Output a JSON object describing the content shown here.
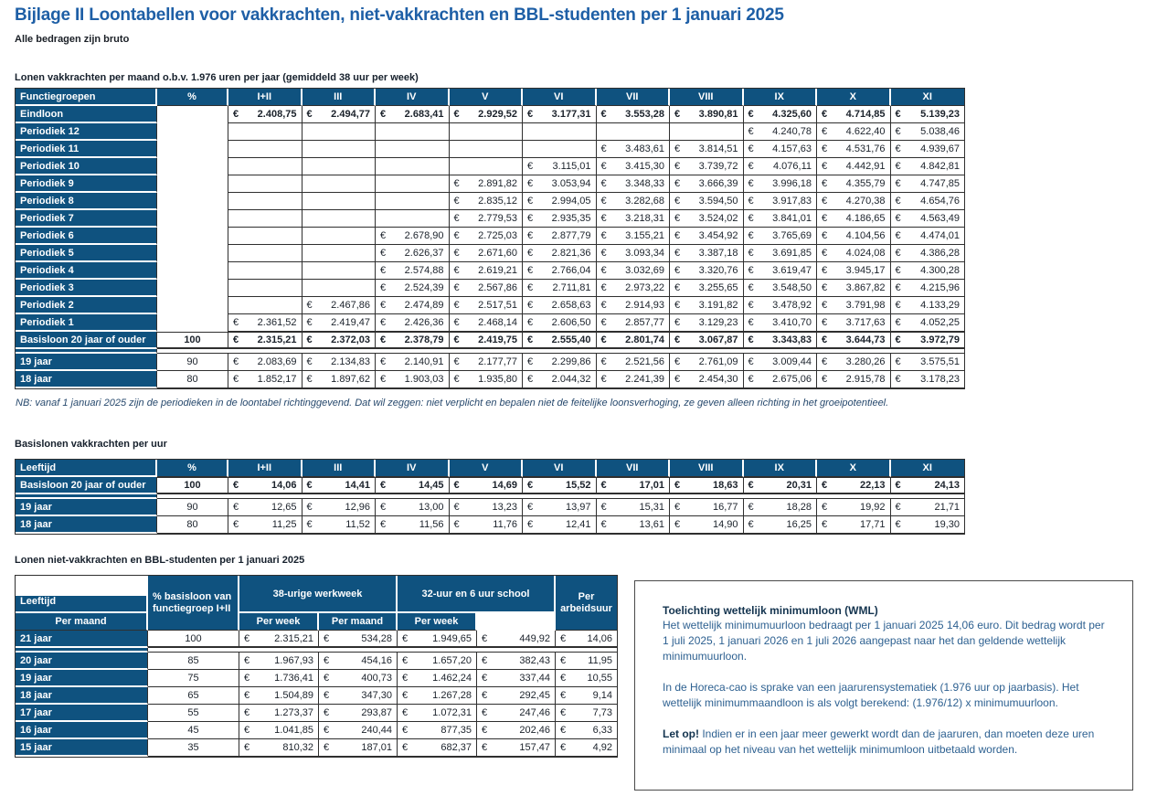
{
  "page": {
    "title": "Bijlage II Loontabellen voor vakkrachten, niet-vakkrachten en BBL-studenten per 1 januari 2025",
    "subtitle": "Alle bedragen zijn bruto"
  },
  "colors": {
    "header_blue": "#0F527F",
    "title_blue": "#1E5FA6",
    "border_dark": "#2F2F2F"
  },
  "euro": "€",
  "table_monthly": {
    "caption": "Lonen vakkrachten per maand o.b.v. 1.976 uren per jaar (gemiddeld 38 uur per week)",
    "label_header": "Functiegroepen",
    "pct_header": "%",
    "columns": [
      "I+II",
      "III",
      "IV",
      "V",
      "VI",
      "VII",
      "VIII",
      "IX",
      "X",
      "XI"
    ],
    "rows": [
      {
        "label": "Eindloon",
        "pct": "",
        "bold": true,
        "values": [
          "2.408,75",
          "2.494,77",
          "2.683,41",
          "2.929,52",
          "3.177,31",
          "3.553,28",
          "3.890,81",
          "4.325,60",
          "4.714,85",
          "5.139,23"
        ]
      },
      {
        "label": "Periodiek 12",
        "pct": "",
        "values": [
          "",
          "",
          "",
          "",
          "",
          "",
          "",
          "4.240,78",
          "4.622,40",
          "5.038,46"
        ]
      },
      {
        "label": "Periodiek 11",
        "pct": "",
        "values": [
          "",
          "",
          "",
          "",
          "",
          "3.483,61",
          "3.814,51",
          "4.157,63",
          "4.531,76",
          "4.939,67"
        ]
      },
      {
        "label": "Periodiek 10",
        "pct": "",
        "values": [
          "",
          "",
          "",
          "",
          "3.115,01",
          "3.415,30",
          "3.739,72",
          "4.076,11",
          "4.442,91",
          "4.842,81"
        ]
      },
      {
        "label": "Periodiek 9",
        "pct": "",
        "values": [
          "",
          "",
          "",
          "2.891,82",
          "3.053,94",
          "3.348,33",
          "3.666,39",
          "3.996,18",
          "4.355,79",
          "4.747,85"
        ]
      },
      {
        "label": "Periodiek 8",
        "pct": "",
        "values": [
          "",
          "",
          "",
          "2.835,12",
          "2.994,05",
          "3.282,68",
          "3.594,50",
          "3.917,83",
          "4.270,38",
          "4.654,76"
        ]
      },
      {
        "label": "Periodiek 7",
        "pct": "",
        "values": [
          "",
          "",
          "",
          "2.779,53",
          "2.935,35",
          "3.218,31",
          "3.524,02",
          "3.841,01",
          "4.186,65",
          "4.563,49"
        ]
      },
      {
        "label": "Periodiek 6",
        "pct": "",
        "values": [
          "",
          "",
          "2.678,90",
          "2.725,03",
          "2.877,79",
          "3.155,21",
          "3.454,92",
          "3.765,69",
          "4.104,56",
          "4.474,01"
        ]
      },
      {
        "label": "Periodiek 5",
        "pct": "",
        "values": [
          "",
          "",
          "2.626,37",
          "2.671,60",
          "2.821,36",
          "3.093,34",
          "3.387,18",
          "3.691,85",
          "4.024,08",
          "4.386,28"
        ]
      },
      {
        "label": "Periodiek 4",
        "pct": "",
        "values": [
          "",
          "",
          "2.574,88",
          "2.619,21",
          "2.766,04",
          "3.032,69",
          "3.320,76",
          "3.619,47",
          "3.945,17",
          "4.300,28"
        ]
      },
      {
        "label": "Periodiek 3",
        "pct": "",
        "values": [
          "",
          "",
          "2.524,39",
          "2.567,86",
          "2.711,81",
          "2.973,22",
          "3.255,65",
          "3.548,50",
          "3.867,82",
          "4.215,96"
        ]
      },
      {
        "label": "Periodiek 2",
        "pct": "",
        "values": [
          "",
          "2.467,86",
          "2.474,89",
          "2.517,51",
          "2.658,63",
          "2.914,93",
          "3.191,82",
          "3.478,92",
          "3.791,98",
          "4.133,29"
        ]
      },
      {
        "label": "Periodiek 1",
        "pct": "",
        "values": [
          "2.361,52",
          "2.419,47",
          "2.426,36",
          "2.468,14",
          "2.606,50",
          "2.857,77",
          "3.129,23",
          "3.410,70",
          "3.717,63",
          "4.052,25"
        ]
      },
      {
        "label": "Basisloon 20 jaar of ouder",
        "pct": "100",
        "bold": true,
        "emphasis": true,
        "values": [
          "2.315,21",
          "2.372,03",
          "2.378,79",
          "2.419,75",
          "2.555,40",
          "2.801,74",
          "3.067,87",
          "3.343,83",
          "3.644,73",
          "3.972,79"
        ]
      },
      {
        "gap": true
      },
      {
        "label": "19 jaar",
        "pct": "90",
        "values": [
          "2.083,69",
          "2.134,83",
          "2.140,91",
          "2.177,77",
          "2.299,86",
          "2.521,56",
          "2.761,09",
          "3.009,44",
          "3.280,26",
          "3.575,51"
        ]
      },
      {
        "label": "18 jaar",
        "pct": "80",
        "values": [
          "1.852,17",
          "1.897,62",
          "1.903,03",
          "1.935,80",
          "2.044,32",
          "2.241,39",
          "2.454,30",
          "2.675,06",
          "2.915,78",
          "3.178,23"
        ]
      }
    ],
    "note": "NB: vanaf 1 januari 2025 zijn de periodieken in de loontabel richtinggevend. Dat wil zeggen: niet verplicht en bepalen niet de feitelijke loonsverhoging, ze geven alleen richting in het groeipotentieel."
  },
  "table_hourly": {
    "caption": "Basislonen vakkrachten per uur",
    "label_header": "Leeftijd",
    "pct_header": "%",
    "columns": [
      "I+II",
      "III",
      "IV",
      "V",
      "VI",
      "VII",
      "VIII",
      "IX",
      "X",
      "XI"
    ],
    "rows": [
      {
        "label": "Basisloon 20 jaar of ouder",
        "pct": "100",
        "bold": true,
        "emphasis": true,
        "values": [
          "14,06",
          "14,41",
          "14,45",
          "14,69",
          "15,52",
          "17,01",
          "18,63",
          "20,31",
          "22,13",
          "24,13"
        ]
      },
      {
        "gap": true
      },
      {
        "label": "19 jaar",
        "pct": "90",
        "values": [
          "12,65",
          "12,96",
          "13,00",
          "13,23",
          "13,97",
          "15,31",
          "16,77",
          "18,28",
          "19,92",
          "21,71"
        ]
      },
      {
        "label": "18 jaar",
        "pct": "80",
        "values": [
          "11,25",
          "11,52",
          "11,56",
          "11,76",
          "12,41",
          "13,61",
          "14,90",
          "16,25",
          "17,71",
          "19,30"
        ]
      }
    ]
  },
  "table_bbl": {
    "caption": "Lonen niet-vakkrachten en BBL-studenten per 1 januari 2025",
    "label_header": "Leeftijd",
    "pct_header_line1": "% basisloon van",
    "pct_header_line2": "functiegroep I+II",
    "group1": "38-urige werkweek",
    "group2": "32-uur en 6 uur school",
    "subs": [
      "Per maand",
      "Per week",
      "Per maand",
      "Per week"
    ],
    "hour_header_line1": "Per",
    "hour_header_line2": "arbeidsuur",
    "rows": [
      {
        "label": "21 jaar",
        "pct": "100",
        "emphasis": true,
        "values": [
          "2.315,21",
          "534,28",
          "1.949,65",
          "449,92",
          "14,06"
        ]
      },
      {
        "gap": true
      },
      {
        "label": "20 jaar",
        "pct": "85",
        "values": [
          "1.967,93",
          "454,16",
          "1.657,20",
          "382,43",
          "11,95"
        ]
      },
      {
        "label": "19 jaar",
        "pct": "75",
        "values": [
          "1.736,41",
          "400,73",
          "1.462,24",
          "337,44",
          "10,55"
        ]
      },
      {
        "label": "18 jaar",
        "pct": "65",
        "values": [
          "1.504,89",
          "347,30",
          "1.267,28",
          "292,45",
          "9,14"
        ]
      },
      {
        "label": "17 jaar",
        "pct": "55",
        "values": [
          "1.273,37",
          "293,87",
          "1.072,31",
          "247,46",
          "7,73"
        ]
      },
      {
        "label": "16 jaar",
        "pct": "45",
        "values": [
          "1.041,85",
          "240,44",
          "877,35",
          "202,46",
          "6,33"
        ]
      },
      {
        "label": "15 jaar",
        "pct": "35",
        "values": [
          "810,32",
          "187,01",
          "682,37",
          "157,47",
          "4,92"
        ]
      }
    ]
  },
  "info_box": {
    "title": "Toelichting wettelijk minimumloon (WML)",
    "p1": "Het wettelijk minimumuurloon bedraagt per 1 januari 2025 14,06 euro. Dit bedrag wordt per 1 juli 2025, 1 januari 2026 en 1 juli 2026 aangepast naar het dan geldende wettelijk minimumuurloon.",
    "p2": "In de Horeca-cao is sprake van een jaarurensystematiek (1.976 uur op jaarbasis). Het wettelijk minimummaandloon is als volgt berekend: (1.976/12) x minimumuurloon.",
    "p3_bold": "Let op!",
    "p3": " Indien er in een jaar meer gewerkt wordt dan de jaaruren, dan moeten deze uren minimaal op het niveau van het wettelijk minimumloon uitbetaald worden."
  }
}
